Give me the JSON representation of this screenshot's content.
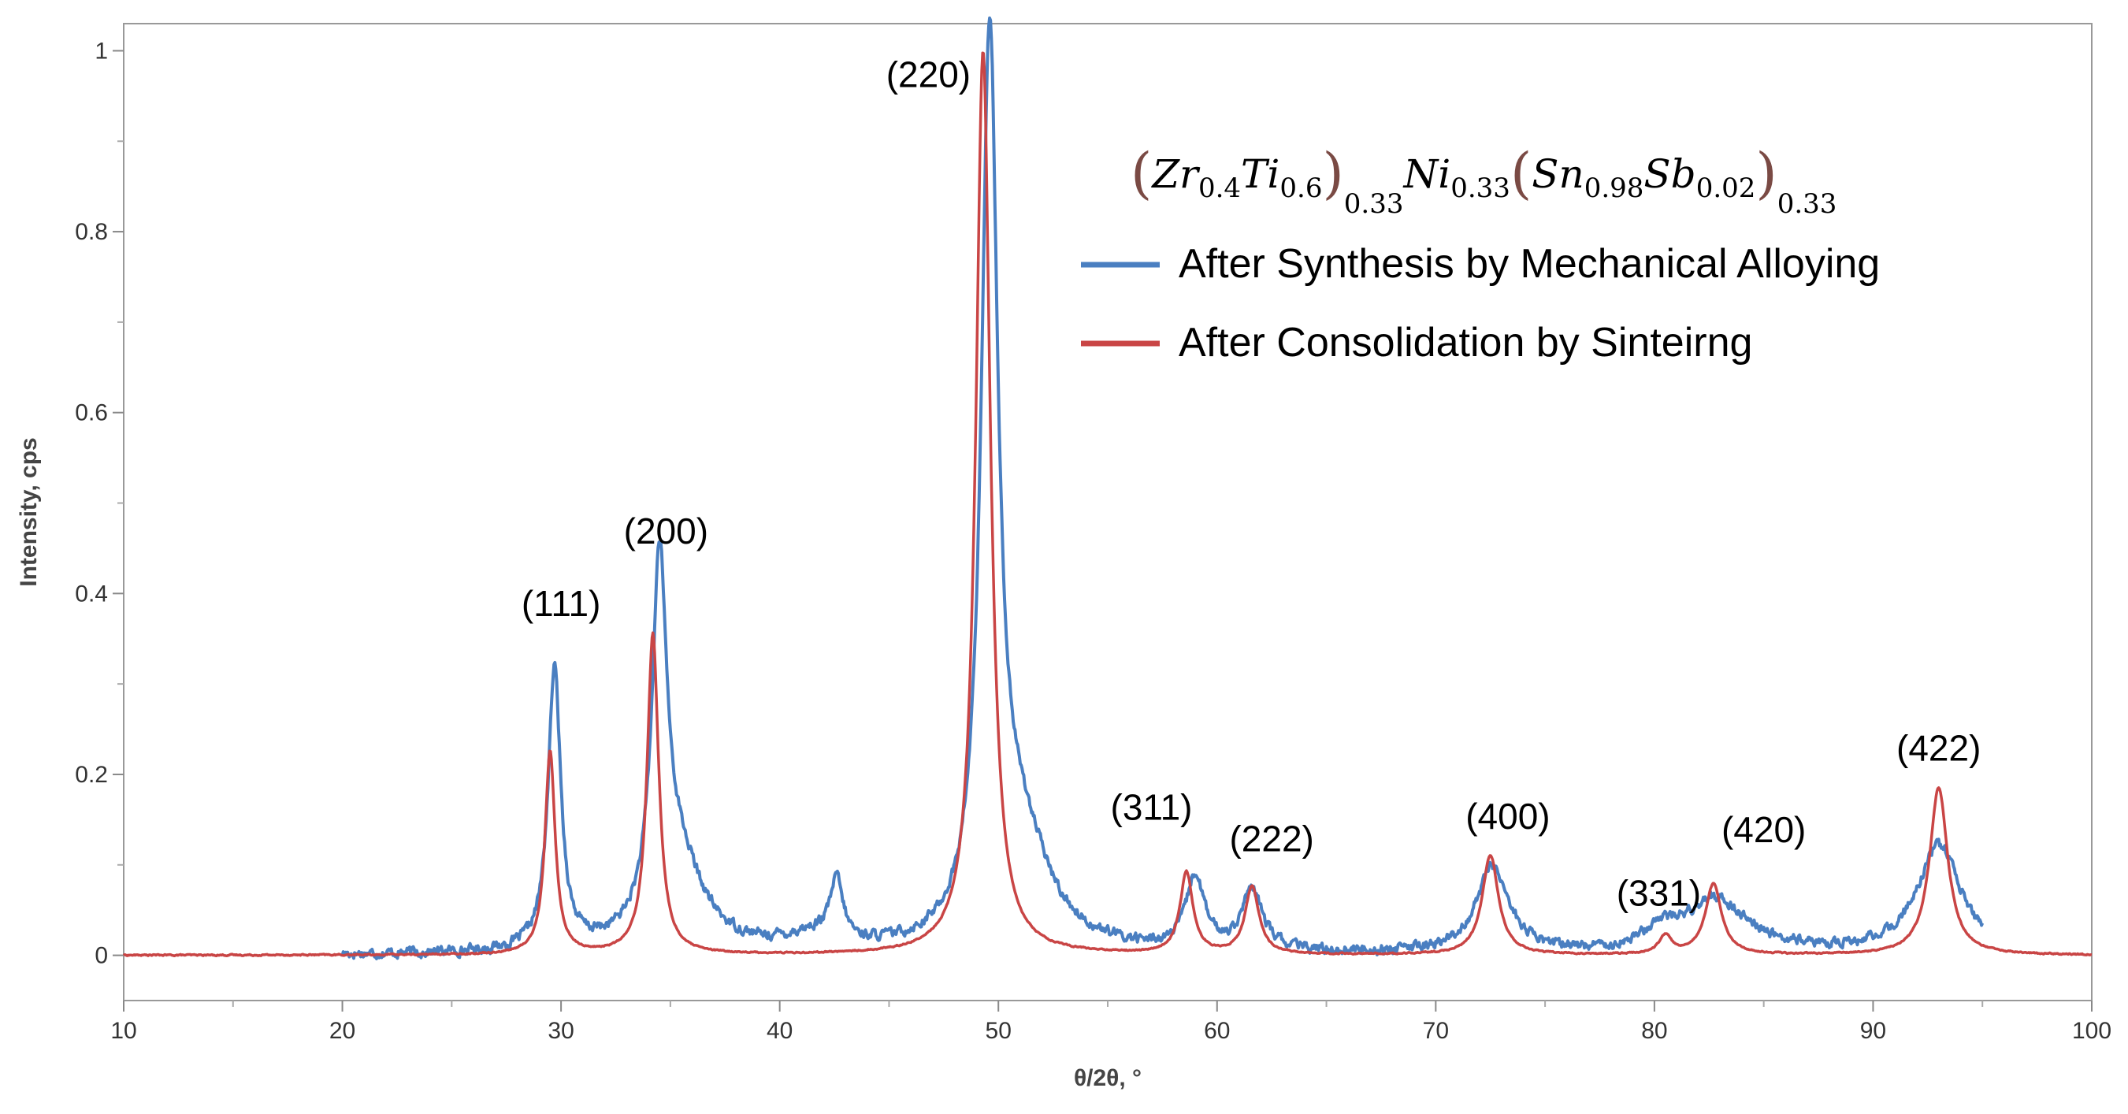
{
  "chart_data": {
    "type": "line",
    "xlabel": "θ/2θ, °",
    "ylabel": "Intensity, cps",
    "xlim": [
      10,
      100
    ],
    "ylim": [
      -0.05,
      1.03
    ],
    "x_ticks": [
      10,
      20,
      30,
      40,
      50,
      60,
      70,
      80,
      90,
      100
    ],
    "y_ticks": [
      0,
      0.2,
      0.4,
      0.6,
      0.8,
      1
    ],
    "y_tick_labels": [
      "0",
      "0.2",
      "0.4",
      "0.6",
      "0.8",
      "1"
    ],
    "grid": false,
    "legend_position": "top-right",
    "formula": {
      "zr": "Zr",
      "zr_sub": "0.4",
      "ti": "Ti",
      "ti_sub": "0.6",
      "g1_sub": "0.33",
      "ni": "Ni",
      "ni_sub": "0.33",
      "sn": "Sn",
      "sn_sub": "0.98",
      "sb": "Sb",
      "sb_sub": "0.02",
      "g2_sub": "0.33"
    },
    "series": [
      {
        "name": "After Synthesis by Mechanical Alloying",
        "color": "#4a7fc1",
        "x_range": [
          20,
          95
        ],
        "baseline": 0,
        "noise": 0.009,
        "peaks": [
          {
            "center": 29.7,
            "height": 0.31,
            "width": 0.35
          },
          {
            "center": 34.5,
            "height": 0.38,
            "width": 0.4
          },
          {
            "center": 35.3,
            "height": 0.1,
            "width": 1.4
          },
          {
            "center": 42.6,
            "height": 0.065,
            "width": 0.35
          },
          {
            "center": 41.5,
            "height": 0.015,
            "width": 1.5
          },
          {
            "center": 49.6,
            "height": 0.97,
            "width": 0.45
          },
          {
            "center": 51.0,
            "height": 0.12,
            "width": 1.6
          },
          {
            "center": 59.0,
            "height": 0.08,
            "width": 0.5
          },
          {
            "center": 61.6,
            "height": 0.065,
            "width": 0.6
          },
          {
            "center": 72.6,
            "height": 0.095,
            "width": 0.9
          },
          {
            "center": 82.8,
            "height": 0.06,
            "width": 1.8
          },
          {
            "center": 80.3,
            "height": 0.02,
            "width": 0.8
          },
          {
            "center": 93.0,
            "height": 0.12,
            "width": 1.2
          }
        ]
      },
      {
        "name": "After Consolidation by Sinteirng",
        "color": "#c94545",
        "x_range": [
          10,
          100
        ],
        "baseline": 0,
        "noise": 0.0012,
        "peaks": [
          {
            "center": 29.5,
            "height": 0.225,
            "width": 0.28
          },
          {
            "center": 34.2,
            "height": 0.355,
            "width": 0.32
          },
          {
            "center": 49.3,
            "height": 1.0,
            "width": 0.4
          },
          {
            "center": 58.6,
            "height": 0.09,
            "width": 0.35
          },
          {
            "center": 61.6,
            "height": 0.075,
            "width": 0.38
          },
          {
            "center": 72.5,
            "height": 0.11,
            "width": 0.45
          },
          {
            "center": 80.5,
            "height": 0.02,
            "width": 0.35
          },
          {
            "center": 82.7,
            "height": 0.078,
            "width": 0.45
          },
          {
            "center": 93.0,
            "height": 0.185,
            "width": 0.5
          }
        ]
      }
    ],
    "annotations": [
      {
        "text": "(111)",
        "x": 30.0,
        "y": 0.375
      },
      {
        "text": "(200)",
        "x": 34.8,
        "y": 0.455
      },
      {
        "text": "(220)",
        "x": 46.8,
        "y": 0.96
      },
      {
        "text": "(311)",
        "x": 57.0,
        "y": 0.15
      },
      {
        "text": "(222)",
        "x": 62.5,
        "y": 0.115
      },
      {
        "text": "(400)",
        "x": 73.3,
        "y": 0.14
      },
      {
        "text": "(331)",
        "x": 80.2,
        "y": 0.055
      },
      {
        "text": "(420)",
        "x": 85.0,
        "y": 0.125
      },
      {
        "text": "(422)",
        "x": 93.0,
        "y": 0.215
      }
    ]
  }
}
